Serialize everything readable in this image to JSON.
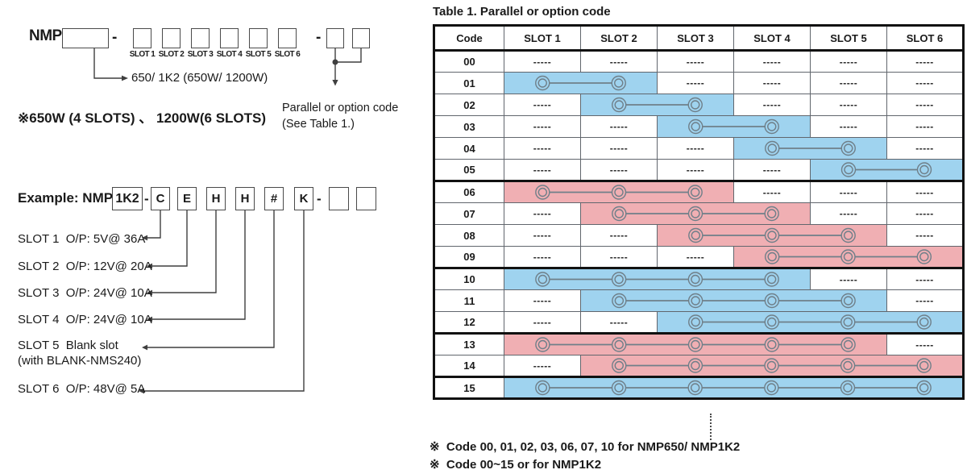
{
  "colors": {
    "highlight_blue": "#9FD3EF",
    "highlight_pink": "#F0AFB3",
    "connector_stroke": "#6F7F89",
    "grid_line": "#61666D",
    "frame": "#111111",
    "text": "#1A1A1A"
  },
  "diagram": {
    "prefix": "NMP",
    "dash": "-",
    "slot_labels": [
      "SLOT 1",
      "SLOT 2",
      "SLOT 3",
      "SLOT 4",
      "SLOT 5",
      "SLOT 6"
    ],
    "power_line": "650/ 1K2 (650W/ 1200W)",
    "watt_note": "※650W (4 SLOTS) 、 1200W(6 SLOTS)",
    "parallel_note_1": "Parallel or option code",
    "parallel_note_2": "(See Table 1.)"
  },
  "example": {
    "label": "Example: NMP",
    "model": "1K2",
    "dash": "-",
    "letters": [
      "C",
      "E",
      "H",
      "H",
      "#",
      "K"
    ],
    "specs": [
      "SLOT 1  O/P: 5V@ 36A",
      "SLOT 2  O/P: 12V@ 20A",
      "SLOT 3  O/P: 24V@ 10A",
      "SLOT 4  O/P: 24V@ 10A",
      "SLOT 5  Blank slot",
      "(with BLANK-NMS240)",
      "SLOT 6  O/P: 48V@ 5A"
    ]
  },
  "table": {
    "title": "Table 1. Parallel or option code",
    "columns": [
      "Code",
      "SLOT 1",
      "SLOT 2",
      "SLOT 3",
      "SLOT 4",
      "SLOT 5",
      "SLOT 6"
    ],
    "dash": "-----",
    "rows": [
      {
        "code": "00",
        "span": null
      },
      {
        "code": "01",
        "span": {
          "from": 1,
          "to": 2,
          "color": "blue"
        }
      },
      {
        "code": "02",
        "span": {
          "from": 2,
          "to": 3,
          "color": "blue"
        }
      },
      {
        "code": "03",
        "span": {
          "from": 3,
          "to": 4,
          "color": "blue"
        }
      },
      {
        "code": "04",
        "span": {
          "from": 4,
          "to": 5,
          "color": "blue"
        }
      },
      {
        "code": "05",
        "span": {
          "from": 5,
          "to": 6,
          "color": "blue"
        }
      },
      {
        "code": "06",
        "span": {
          "from": 1,
          "to": 3,
          "color": "pink"
        }
      },
      {
        "code": "07",
        "span": {
          "from": 2,
          "to": 4,
          "color": "pink"
        }
      },
      {
        "code": "08",
        "span": {
          "from": 3,
          "to": 5,
          "color": "pink"
        }
      },
      {
        "code": "09",
        "span": {
          "from": 4,
          "to": 6,
          "color": "pink"
        }
      },
      {
        "code": "10",
        "span": {
          "from": 1,
          "to": 4,
          "color": "blue"
        }
      },
      {
        "code": "11",
        "span": {
          "from": 2,
          "to": 5,
          "color": "blue"
        }
      },
      {
        "code": "12",
        "span": {
          "from": 3,
          "to": 6,
          "color": "blue"
        }
      },
      {
        "code": "13",
        "span": {
          "from": 1,
          "to": 5,
          "color": "pink"
        }
      },
      {
        "code": "14",
        "span": {
          "from": 2,
          "to": 6,
          "color": "pink"
        }
      },
      {
        "code": "15",
        "span": {
          "from": 1,
          "to": 6,
          "color": "blue"
        }
      }
    ],
    "groups_end_after": [
      "05",
      "09",
      "12",
      "14"
    ]
  },
  "footnotes": [
    "※  Code 00, 01, 02, 03, 06, 07, 10 for NMP650/ NMP1K2",
    "※  Code 00~15 or for NMP1K2"
  ]
}
